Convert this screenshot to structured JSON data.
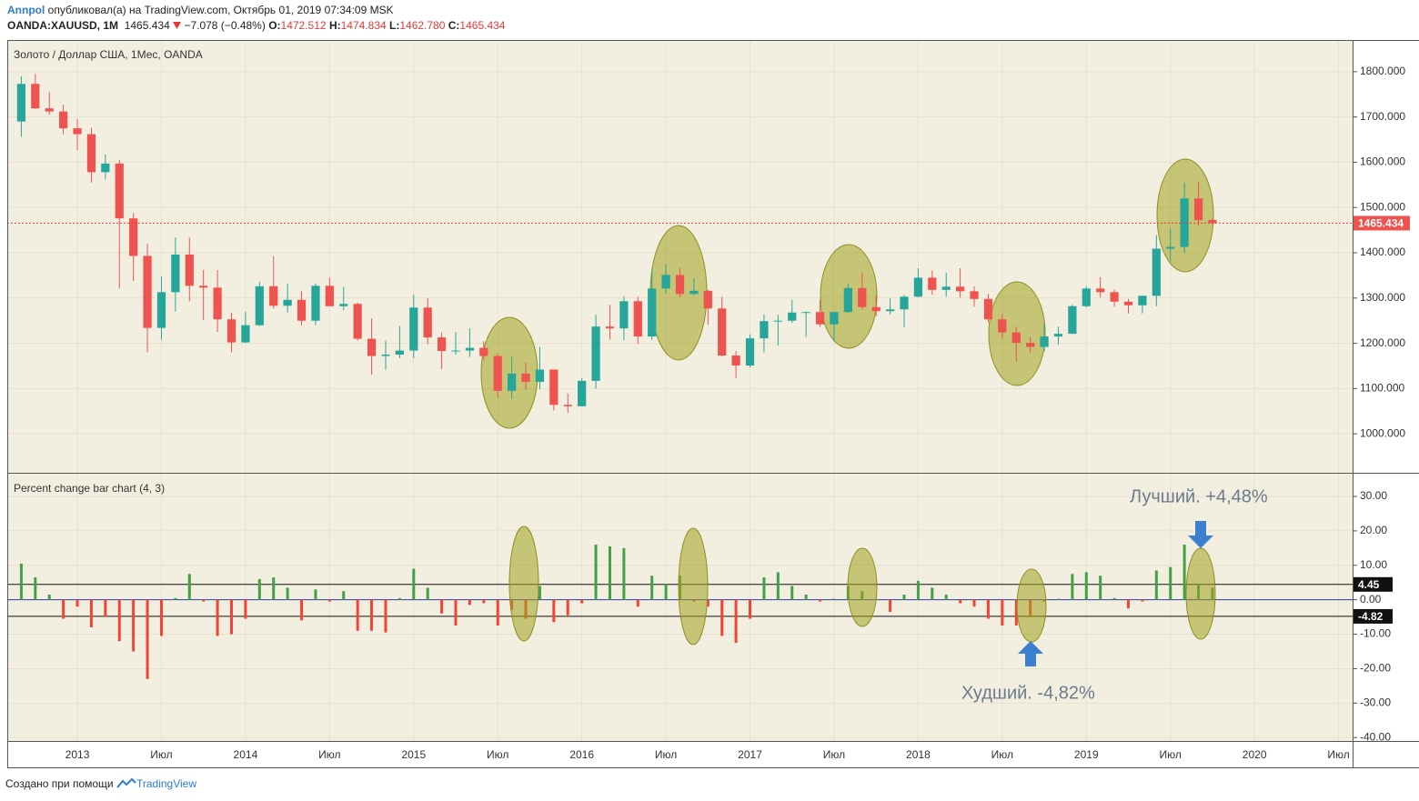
{
  "header": {
    "author": "Annpol",
    "published": "опубликовал(а) на TradingView.com, Октябрь 01, 2019 07:34:09 MSK",
    "symbol": "OANDA:XAUUSD, 1M",
    "last": "1465.434",
    "change": "−7.078 (−0.48%)",
    "open_label": "O:",
    "open": "1472.512",
    "high_label": "H:",
    "high": "1474.834",
    "low_label": "L:",
    "low": "1462.780",
    "close_label": "C:",
    "close": "1465.434"
  },
  "footer": {
    "text": "Создано при помощи",
    "brand": "TradingView"
  },
  "chart_data": [
    {
      "type": "candlestick",
      "title": "Золото / Доллар США, 1Мес, OANDA",
      "x": [
        "2012-09",
        "2012-10",
        "2012-11",
        "2012-12",
        "2013-01",
        "2013-02",
        "2013-03",
        "2013-04",
        "2013-05",
        "2013-06",
        "2013-07",
        "2013-08",
        "2013-09",
        "2013-10",
        "2013-11",
        "2013-12",
        "2014-01",
        "2014-02",
        "2014-03",
        "2014-04",
        "2014-05",
        "2014-06",
        "2014-07",
        "2014-08",
        "2014-09",
        "2014-10",
        "2014-11",
        "2014-12",
        "2015-01",
        "2015-02",
        "2015-03",
        "2015-04",
        "2015-05",
        "2015-06",
        "2015-07",
        "2015-08",
        "2015-09",
        "2015-10",
        "2015-11",
        "2015-12",
        "2016-01",
        "2016-02",
        "2016-03",
        "2016-04",
        "2016-05",
        "2016-06",
        "2016-07",
        "2016-08",
        "2016-09",
        "2016-10",
        "2016-11",
        "2016-12",
        "2017-01",
        "2017-02",
        "2017-03",
        "2017-04",
        "2017-05",
        "2017-06",
        "2017-07",
        "2017-08",
        "2017-09",
        "2017-10",
        "2017-11",
        "2017-12",
        "2018-01",
        "2018-02",
        "2018-03",
        "2018-04",
        "2018-05",
        "2018-06",
        "2018-07",
        "2018-08",
        "2018-09",
        "2018-10",
        "2018-11",
        "2018-12",
        "2019-01",
        "2019-02",
        "2019-03",
        "2019-04",
        "2019-05",
        "2019-06",
        "2019-07",
        "2019-08",
        "2019-09",
        "2019-10"
      ],
      "open": [
        1690,
        1773,
        1719,
        1712,
        1675,
        1662,
        1578,
        1597,
        1476,
        1393,
        1234,
        1313,
        1396,
        1327,
        1323,
        1253,
        1202,
        1240,
        1326,
        1283,
        1296,
        1250,
        1327,
        1282,
        1287,
        1210,
        1172,
        1175,
        1184,
        1279,
        1213,
        1183,
        1184,
        1190,
        1172,
        1095,
        1133,
        1115,
        1142,
        1064,
        1061,
        1117,
        1237,
        1233,
        1293,
        1215,
        1321,
        1351,
        1309,
        1316,
        1277,
        1173,
        1151,
        1211,
        1249,
        1250,
        1268,
        1269,
        1242,
        1269,
        1322,
        1280,
        1271,
        1275,
        1303,
        1345,
        1318,
        1325,
        1315,
        1298,
        1253,
        1224,
        1201,
        1192,
        1215,
        1221,
        1282,
        1321,
        1313,
        1292,
        1284,
        1305,
        1409,
        1413,
        1520,
        1472.512
      ],
      "high": [
        1790,
        1795,
        1755,
        1727,
        1695,
        1676,
        1617,
        1605,
        1488,
        1420,
        1348,
        1434,
        1434,
        1362,
        1362,
        1268,
        1270,
        1336,
        1392,
        1332,
        1315,
        1332,
        1345,
        1325,
        1290,
        1255,
        1206,
        1238,
        1307,
        1300,
        1224,
        1225,
        1233,
        1205,
        1177,
        1170,
        1157,
        1192,
        1142,
        1089,
        1123,
        1263,
        1285,
        1304,
        1303,
        1362,
        1375,
        1367,
        1344,
        1318,
        1303,
        1183,
        1220,
        1264,
        1263,
        1296,
        1270,
        1296,
        1270,
        1331,
        1357,
        1306,
        1299,
        1307,
        1366,
        1361,
        1356,
        1366,
        1326,
        1309,
        1266,
        1237,
        1214,
        1243,
        1237,
        1285,
        1326,
        1346,
        1319,
        1298,
        1305,
        1439,
        1453,
        1555,
        1557,
        1474.834
      ],
      "low": [
        1656,
        1718,
        1705,
        1662,
        1627,
        1555,
        1562,
        1321,
        1338,
        1180,
        1208,
        1270,
        1293,
        1251,
        1225,
        1180,
        1201,
        1238,
        1277,
        1268,
        1240,
        1240,
        1285,
        1273,
        1206,
        1131,
        1142,
        1167,
        1167,
        1198,
        1143,
        1175,
        1170,
        1162,
        1080,
        1077,
        1097,
        1098,
        1052,
        1046,
        1061,
        1100,
        1208,
        1207,
        1199,
        1208,
        1310,
        1302,
        1306,
        1241,
        1171,
        1123,
        1147,
        1180,
        1195,
        1245,
        1214,
        1236,
        1204,
        1267,
        1274,
        1260,
        1264,
        1236,
        1302,
        1307,
        1303,
        1301,
        1281,
        1247,
        1211,
        1160,
        1180,
        1182,
        1197,
        1221,
        1279,
        1301,
        1281,
        1266,
        1266,
        1282,
        1381,
        1400,
        1459,
        1462.78
      ],
      "close": [
        1773,
        1719,
        1712,
        1675,
        1662,
        1578,
        1597,
        1476,
        1393,
        1234,
        1313,
        1396,
        1327,
        1323,
        1253,
        1202,
        1240,
        1326,
        1283,
        1296,
        1250,
        1327,
        1282,
        1287,
        1210,
        1172,
        1175,
        1184,
        1279,
        1213,
        1183,
        1184,
        1190,
        1172,
        1095,
        1133,
        1115,
        1142,
        1064,
        1061,
        1117,
        1237,
        1233,
        1293,
        1215,
        1321,
        1351,
        1309,
        1316,
        1277,
        1173,
        1151,
        1211,
        1249,
        1250,
        1268,
        1269,
        1242,
        1269,
        1322,
        1280,
        1271,
        1275,
        1303,
        1345,
        1318,
        1325,
        1315,
        1298,
        1253,
        1224,
        1201,
        1192,
        1215,
        1221,
        1282,
        1321,
        1313,
        1292,
        1284,
        1305,
        1409,
        1413,
        1520,
        1472,
        1465.434
      ],
      "color_up": "#26a69a",
      "color_down": "#ef5350",
      "ylim": [
        914,
        1870
      ],
      "yticks": [
        {
          "value": 1800,
          "label": "1800.000"
        },
        {
          "value": 1700,
          "label": "1700.000"
        },
        {
          "value": 1600,
          "label": "1600.000"
        },
        {
          "value": 1500,
          "label": "1500.000"
        },
        {
          "value": 1400,
          "label": "1400.000"
        },
        {
          "value": 1300,
          "label": "1300.000"
        },
        {
          "value": 1200,
          "label": "1200.000"
        },
        {
          "value": 1100,
          "label": "1100.000"
        },
        {
          "value": 1000,
          "label": "1000.000"
        }
      ],
      "last_price": 1465.434,
      "grid": true
    },
    {
      "type": "bar",
      "title": "Percent change bar chart (4, 3)",
      "x": [
        "2012-09",
        "2012-10",
        "2012-11",
        "2012-12",
        "2013-01",
        "2013-02",
        "2013-03",
        "2013-04",
        "2013-05",
        "2013-06",
        "2013-07",
        "2013-08",
        "2013-09",
        "2013-10",
        "2013-11",
        "2013-12",
        "2014-01",
        "2014-02",
        "2014-03",
        "2014-04",
        "2014-05",
        "2014-06",
        "2014-07",
        "2014-08",
        "2014-09",
        "2014-10",
        "2014-11",
        "2014-12",
        "2015-01",
        "2015-02",
        "2015-03",
        "2015-04",
        "2015-05",
        "2015-06",
        "2015-07",
        "2015-08",
        "2015-09",
        "2015-10",
        "2015-11",
        "2015-12",
        "2016-01",
        "2016-02",
        "2016-03",
        "2016-04",
        "2016-05",
        "2016-06",
        "2016-07",
        "2016-08",
        "2016-09",
        "2016-10",
        "2016-11",
        "2016-12",
        "2017-01",
        "2017-02",
        "2017-03",
        "2017-04",
        "2017-05",
        "2017-06",
        "2017-07",
        "2017-08",
        "2017-09",
        "2017-10",
        "2017-11",
        "2017-12",
        "2018-01",
        "2018-02",
        "2018-03",
        "2018-04",
        "2018-05",
        "2018-06",
        "2018-07",
        "2018-08",
        "2018-09",
        "2018-10",
        "2018-11",
        "2018-12",
        "2019-01",
        "2019-02",
        "2019-03",
        "2019-04",
        "2019-05",
        "2019-06",
        "2019-07",
        "2019-08",
        "2019-09",
        "2019-10"
      ],
      "values": [
        10.5,
        6.5,
        1.5,
        -5.5,
        -2,
        -8,
        -5,
        -12,
        -15,
        -23,
        -10.5,
        0.5,
        7.5,
        -0.5,
        -10.5,
        -10,
        -5.5,
        6,
        6.5,
        3.5,
        -6,
        3,
        -0.5,
        2.5,
        -9,
        -9,
        -9.5,
        0.5,
        9,
        3.5,
        -4,
        -7.5,
        -1.5,
        -1,
        -7.5,
        -3,
        -5.5,
        4,
        -6.5,
        -4.5,
        -1,
        16,
        15.5,
        15,
        -2,
        7,
        4.5,
        7,
        -0.5,
        -2,
        -10.5,
        -12.5,
        -5.5,
        6.5,
        8,
        4,
        1.5,
        -0.5,
        0.3,
        4,
        2.5,
        0.2,
        -3.5,
        1.5,
        5.5,
        3.5,
        1.5,
        -1,
        -2,
        -5.5,
        -7.5,
        -7.5,
        -4.82,
        -0.5,
        0.3,
        7.5,
        8,
        7,
        0.5,
        -2.5,
        -0.5,
        8.5,
        9.5,
        16,
        4.48,
        3.5
      ],
      "color_up": "#43a047",
      "color_down": "#f44336",
      "ylim": [
        -41,
        36.6
      ],
      "yticks": [
        {
          "value": 30,
          "label": "30.00"
        },
        {
          "value": 20,
          "label": "20.00"
        },
        {
          "value": 10,
          "label": "10.00"
        },
        {
          "value": 0,
          "label": "0.00"
        },
        {
          "value": -10,
          "label": "-10.00"
        },
        {
          "value": -20,
          "label": "-20.00"
        },
        {
          "value": -30,
          "label": "-30.00"
        },
        {
          "value": -40,
          "label": "-40.00"
        }
      ],
      "levels": [
        4.45,
        -4.82
      ],
      "annotations": [
        "Лучший. +4,48%",
        "Худший. -4,82%"
      ],
      "xlim": [
        "2012-08",
        "2020-08"
      ],
      "xticks": [
        {
          "value": "2013-01",
          "label": "2013"
        },
        {
          "value": "2013-07",
          "label": "Июл"
        },
        {
          "value": "2014-01",
          "label": "2014"
        },
        {
          "value": "2014-07",
          "label": "Июл"
        },
        {
          "value": "2015-01",
          "label": "2015"
        },
        {
          "value": "2015-07",
          "label": "Июл"
        },
        {
          "value": "2016-01",
          "label": "2016"
        },
        {
          "value": "2016-07",
          "label": "Июл"
        },
        {
          "value": "2017-01",
          "label": "2017"
        },
        {
          "value": "2017-07",
          "label": "Июл"
        },
        {
          "value": "2018-01",
          "label": "2018"
        },
        {
          "value": "2018-07",
          "label": "Июл"
        },
        {
          "value": "2019-01",
          "label": "2019"
        },
        {
          "value": "2019-07",
          "label": "Июл"
        },
        {
          "value": "2020-01",
          "label": "2020"
        },
        {
          "value": "2020-07",
          "label": "Июл"
        }
      ],
      "grid": true
    }
  ]
}
